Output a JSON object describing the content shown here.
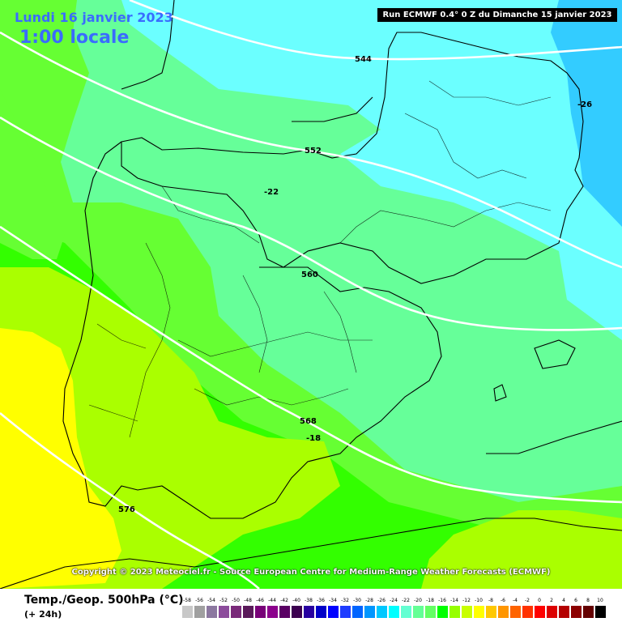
{
  "header": {
    "date": "Lundi 16 janvier 2023",
    "time": "1:00 locale",
    "run": "Run ECMWF 0.4° 0 Z du Dimanche 15 janvier 2023"
  },
  "footer": {
    "copyright": "Copyright © 2023 Meteociel.fr - Source European Centre for Medium-Range Weather Forecasts (ECMWF)",
    "parameter": "Temp./Geop. 500hPa (°C)",
    "lead": "(+ 24h)"
  },
  "map_labels": {
    "iso_544": "544",
    "iso_552": "552",
    "iso_560": "560",
    "iso_568": "568",
    "iso_576": "576",
    "temp_m26": "-26",
    "temp_m22": "-22",
    "temp_m18": "-18"
  },
  "scale": {
    "ticks": [
      "-58",
      "-56",
      "-54",
      "-52",
      "-50",
      "-48",
      "-46",
      "-44",
      "-42",
      "-40",
      "-38",
      "-36",
      "-34",
      "-32",
      "-30",
      "-28",
      "-26",
      "-24",
      "-22",
      "-20",
      "-18",
      "-16",
      "-14",
      "-12",
      "-10",
      "-8",
      "-6",
      "-4",
      "-2",
      "0",
      "2",
      "4",
      "6",
      "8",
      "10"
    ],
    "colors": [
      "#c8c8c8",
      "#a0a0a0",
      "#8c78a0",
      "#8c4c9c",
      "#7a2a7a",
      "#5a1a5a",
      "#780078",
      "#8c008c",
      "#5a0064",
      "#3c0050",
      "#2800a0",
      "#0000c8",
      "#0000ff",
      "#1e3cff",
      "#0064ff",
      "#0096ff",
      "#00c8ff",
      "#00ffff",
      "#64ffd2",
      "#64ff96",
      "#64ff64",
      "#00ff00",
      "#96ff00",
      "#c8ff00",
      "#ffff00",
      "#ffc800",
      "#ff9600",
      "#ff6400",
      "#ff3200",
      "#ff0000",
      "#dc0000",
      "#b40000",
      "#8c0000",
      "#640000",
      "#000000"
    ]
  },
  "colors": {
    "cyan_field": "#6bffff",
    "aqua_green_field": "#66ff99",
    "green_field": "#66ff33",
    "bright_green_field": "#33ff00",
    "lime_field": "#aaff00",
    "yellow_field": "#ffff00",
    "blue_field": "#33ccff",
    "title_blue": "#3a6cff"
  }
}
